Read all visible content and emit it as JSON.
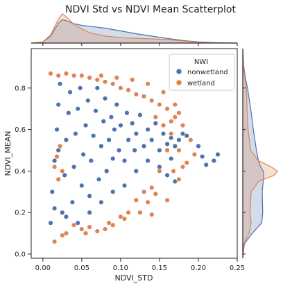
{
  "chart_data": {
    "type": "scatter",
    "title": "NDVI Std vs NDVI Mean Scatterplot",
    "xlabel": "NDVI_STD",
    "ylabel": "NDVI_MEAN",
    "xlim": [
      -0.015,
      0.25
    ],
    "ylim": [
      -0.02,
      0.99
    ],
    "x_ticks": [
      0.0,
      0.05,
      0.1,
      0.15,
      0.2,
      0.25
    ],
    "x_tick_labels": [
      "0.00",
      "0.05",
      "0.10",
      "0.15",
      "0.20",
      "0.25"
    ],
    "y_ticks": [
      0.0,
      0.2,
      0.4,
      0.6,
      0.8
    ],
    "y_tick_labels": [
      "0.0",
      "0.2",
      "0.4",
      "0.6",
      "0.8"
    ],
    "grid": false,
    "legend": {
      "title": "NWI",
      "placement": "top-right"
    },
    "marginal_plots": "kde",
    "series": [
      {
        "name": "nonwetland",
        "color": "#4c72b0",
        "points": [
          [
            0.01,
            0.15
          ],
          [
            0.012,
            0.3
          ],
          [
            0.015,
            0.45
          ],
          [
            0.018,
            0.6
          ],
          [
            0.02,
            0.72
          ],
          [
            0.022,
            0.82
          ],
          [
            0.025,
            0.2
          ],
          [
            0.028,
            0.38
          ],
          [
            0.03,
            0.55
          ],
          [
            0.033,
            0.68
          ],
          [
            0.035,
            0.78
          ],
          [
            0.038,
            0.25
          ],
          [
            0.04,
            0.42
          ],
          [
            0.042,
            0.58
          ],
          [
            0.045,
            0.7
          ],
          [
            0.048,
            0.8
          ],
          [
            0.05,
            0.33
          ],
          [
            0.052,
            0.48
          ],
          [
            0.055,
            0.62
          ],
          [
            0.058,
            0.74
          ],
          [
            0.06,
            0.28
          ],
          [
            0.062,
            0.45
          ],
          [
            0.065,
            0.57
          ],
          [
            0.068,
            0.69
          ],
          [
            0.07,
            0.8
          ],
          [
            0.072,
            0.36
          ],
          [
            0.075,
            0.52
          ],
          [
            0.078,
            0.64
          ],
          [
            0.08,
            0.75
          ],
          [
            0.082,
            0.4
          ],
          [
            0.085,
            0.55
          ],
          [
            0.088,
            0.66
          ],
          [
            0.09,
            0.46
          ],
          [
            0.092,
            0.6
          ],
          [
            0.095,
            0.72
          ],
          [
            0.098,
            0.5
          ],
          [
            0.1,
            0.62
          ],
          [
            0.105,
            0.45
          ],
          [
            0.108,
            0.68
          ],
          [
            0.11,
            0.55
          ],
          [
            0.115,
            0.63
          ],
          [
            0.118,
            0.5
          ],
          [
            0.12,
            0.58
          ],
          [
            0.125,
            0.67
          ],
          [
            0.13,
            0.52
          ],
          [
            0.135,
            0.6
          ],
          [
            0.14,
            0.55
          ],
          [
            0.145,
            0.63
          ],
          [
            0.15,
            0.5
          ],
          [
            0.155,
            0.58
          ],
          [
            0.16,
            0.53
          ],
          [
            0.165,
            0.56
          ],
          [
            0.17,
            0.52
          ],
          [
            0.175,
            0.55
          ],
          [
            0.18,
            0.58
          ],
          [
            0.185,
            0.57
          ],
          [
            0.2,
            0.52
          ],
          [
            0.205,
            0.47
          ],
          [
            0.21,
            0.43
          ],
          [
            0.22,
            0.45
          ],
          [
            0.225,
            0.48
          ],
          [
            0.015,
            0.22
          ],
          [
            0.02,
            0.5
          ],
          [
            0.03,
            0.18
          ],
          [
            0.045,
            0.15
          ],
          [
            0.06,
            0.2
          ],
          [
            0.075,
            0.25
          ],
          [
            0.09,
            0.3
          ],
          [
            0.105,
            0.33
          ],
          [
            0.12,
            0.4
          ],
          [
            0.135,
            0.45
          ],
          [
            0.15,
            0.42
          ],
          [
            0.16,
            0.38
          ],
          [
            0.165,
            0.46
          ],
          [
            0.17,
            0.35
          ]
        ]
      },
      {
        "name": "wetland",
        "color": "#dd8452",
        "points": [
          [
            0.01,
            0.87
          ],
          [
            0.02,
            0.86
          ],
          [
            0.03,
            0.87
          ],
          [
            0.04,
            0.86
          ],
          [
            0.05,
            0.86
          ],
          [
            0.06,
            0.85
          ],
          [
            0.07,
            0.84
          ],
          [
            0.08,
            0.83
          ],
          [
            0.09,
            0.82
          ],
          [
            0.1,
            0.8
          ],
          [
            0.11,
            0.79
          ],
          [
            0.12,
            0.77
          ],
          [
            0.13,
            0.76
          ],
          [
            0.14,
            0.74
          ],
          [
            0.15,
            0.72
          ],
          [
            0.16,
            0.7
          ],
          [
            0.17,
            0.66
          ],
          [
            0.18,
            0.62
          ],
          [
            0.145,
            0.66
          ],
          [
            0.155,
            0.62
          ],
          [
            0.165,
            0.58
          ],
          [
            0.175,
            0.5
          ],
          [
            0.185,
            0.44
          ],
          [
            0.195,
            0.48
          ],
          [
            0.16,
            0.5
          ],
          [
            0.15,
            0.4
          ],
          [
            0.14,
            0.32
          ],
          [
            0.13,
            0.3
          ],
          [
            0.12,
            0.26
          ],
          [
            0.11,
            0.2
          ],
          [
            0.1,
            0.18
          ],
          [
            0.09,
            0.14
          ],
          [
            0.08,
            0.12
          ],
          [
            0.07,
            0.11
          ],
          [
            0.06,
            0.13
          ],
          [
            0.05,
            0.12
          ],
          [
            0.04,
            0.14
          ],
          [
            0.03,
            0.1
          ],
          [
            0.015,
            0.06
          ],
          [
            0.025,
            0.09
          ],
          [
            0.055,
            0.1
          ],
          [
            0.085,
            0.15
          ],
          [
            0.105,
            0.17
          ],
          [
            0.135,
            0.25
          ],
          [
            0.145,
            0.29
          ],
          [
            0.168,
            0.4
          ],
          [
            0.175,
            0.36
          ],
          [
            0.18,
            0.42
          ],
          [
            0.125,
            0.2
          ],
          [
            0.14,
            0.19
          ],
          [
            0.16,
            0.26
          ],
          [
            0.19,
            0.55
          ],
          [
            0.175,
            0.68
          ],
          [
            0.165,
            0.64
          ],
          [
            0.17,
            0.72
          ],
          [
            0.155,
            0.78
          ],
          [
            0.135,
            0.82
          ],
          [
            0.115,
            0.84
          ],
          [
            0.095,
            0.85
          ],
          [
            0.075,
            0.86
          ],
          [
            0.025,
            0.4
          ],
          [
            0.02,
            0.36
          ],
          [
            0.015,
            0.42
          ],
          [
            0.022,
            0.52
          ],
          [
            0.018,
            0.47
          ]
        ]
      }
    ],
    "marginal_x": {
      "grid": [
        -0.015,
        0.0,
        0.01,
        0.02,
        0.025,
        0.03,
        0.04,
        0.05,
        0.06,
        0.08,
        0.1,
        0.12,
        0.14,
        0.16,
        0.18,
        0.2,
        0.22,
        0.25
      ],
      "nonwetland": [
        0.0,
        0.4,
        3.0,
        8.5,
        10.0,
        9.6,
        8.3,
        7.6,
        7.2,
        6.4,
        5.2,
        4.0,
        3.0,
        2.0,
        1.1,
        0.5,
        0.2,
        0.0
      ],
      "wetland": [
        0.0,
        0.5,
        3.5,
        10.3,
        12.5,
        11.3,
        8.0,
        6.0,
        4.4,
        3.0,
        2.3,
        2.0,
        1.8,
        1.5,
        0.9,
        0.3,
        0.1,
        0.0
      ]
    },
    "marginal_y": {
      "grid": [
        -0.02,
        0.05,
        0.1,
        0.15,
        0.2,
        0.3,
        0.35,
        0.38,
        0.4,
        0.42,
        0.45,
        0.5,
        0.6,
        0.7,
        0.8,
        0.85,
        0.9,
        0.99
      ],
      "nonwetland": [
        0.0,
        0.3,
        1.8,
        3.6,
        3.8,
        3.7,
        3.9,
        4.0,
        3.9,
        3.4,
        3.0,
        2.6,
        2.0,
        1.5,
        0.9,
        0.5,
        0.2,
        0.0
      ],
      "wetland": [
        0.0,
        0.2,
        1.2,
        1.6,
        1.4,
        1.6,
        3.0,
        6.0,
        6.6,
        5.4,
        3.0,
        1.5,
        1.0,
        0.8,
        0.7,
        0.4,
        0.1,
        0.0
      ]
    }
  }
}
